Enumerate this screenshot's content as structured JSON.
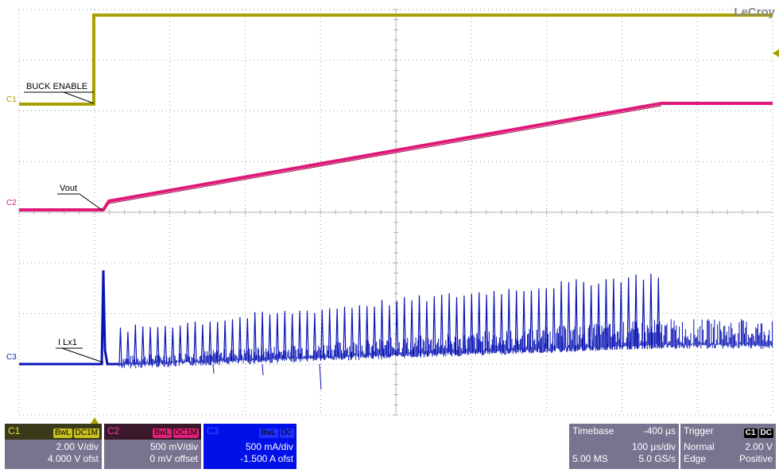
{
  "brand": "LeCroy",
  "colors": {
    "ch1": "#a8a000",
    "ch2": "#e01878",
    "ch3": "#0a14b4",
    "grid": "#9a9a9a"
  },
  "waveform_labels": {
    "c1_marker": "C1",
    "c2_marker": "C2",
    "c3_marker": "C3",
    "c1_name": "BUCK ENABLE",
    "c2_name": "Vout",
    "c3_name": "I Lx1"
  },
  "channels": [
    {
      "tag": "C1",
      "badges": [
        "BwL",
        "DC1M"
      ],
      "line1": "2.00 V/div",
      "line2": "4.000 V ofst"
    },
    {
      "tag": "C2",
      "badges": [
        "BwL",
        "DC1M"
      ],
      "line1": "500 mV/div",
      "line2": "0 mV offset"
    },
    {
      "tag": "C3",
      "badges": [
        "BwL",
        "DC"
      ],
      "line1": "500 mA/div",
      "line2": "-1.500 A ofst"
    }
  ],
  "timebase": {
    "label": "Timebase",
    "delay": "-400 µs",
    "per_div": "100 µs/div",
    "samples": "5.00 MS",
    "rate": "5.0 GS/s"
  },
  "trigger": {
    "label": "Trigger",
    "badges": [
      "C1",
      "DC"
    ],
    "mode": "Normal",
    "level": "2.00 V",
    "type": "Edge",
    "slope": "Positive"
  }
}
